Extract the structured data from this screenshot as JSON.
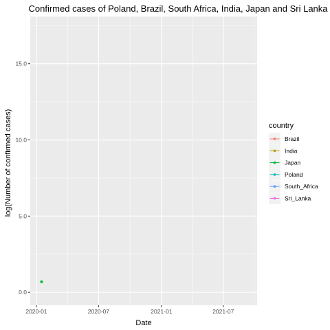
{
  "chart_data": {
    "type": "scatter",
    "title": "Confirmed cases of Poland, Brazil, South Africa, India, Japan and Sri Lanka",
    "xlabel": "Date",
    "ylabel": "log(Number of confirmed cases)",
    "x_tick_labels": [
      "2020-01",
      "2020-07",
      "2021-01",
      "2021-07"
    ],
    "y_tick_labels": [
      "0.0",
      "5.0",
      "10.0",
      "15.0"
    ],
    "y_ticks": [
      0,
      5,
      10,
      15
    ],
    "xlim": [
      "2019-12-14",
      "2021-10-08"
    ],
    "ylim": [
      -0.85,
      18.1
    ],
    "grid": true,
    "legend_position": "right",
    "legend_title": "country",
    "series": [
      {
        "name": "Brazil",
        "color": "#F8766D",
        "points": []
      },
      {
        "name": "India",
        "color": "#B79F00",
        "points": []
      },
      {
        "name": "Japan",
        "color": "#00BA38",
        "points": [
          {
            "x": "2020-01-16",
            "y": 0.69
          }
        ]
      },
      {
        "name": "Poland",
        "color": "#00BFC4",
        "points": []
      },
      {
        "name": "South_Africa",
        "color": "#619CFF",
        "points": []
      },
      {
        "name": "Sri_Lanka",
        "color": "#F564E3",
        "points": []
      }
    ]
  }
}
